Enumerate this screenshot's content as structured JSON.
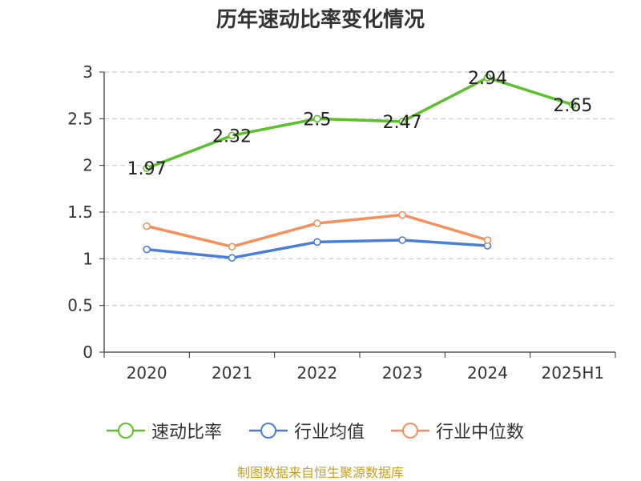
{
  "chart_data": {
    "type": "line",
    "title": "历年速动比率变化情况",
    "categories": [
      "2020",
      "2021",
      "2022",
      "2023",
      "2024",
      "2025H1"
    ],
    "ylim": [
      0,
      3
    ],
    "yticks": [
      "0",
      "0.5",
      "1",
      "1.5",
      "2",
      "2.5",
      "3"
    ],
    "grid": true,
    "legend_position": "bottom",
    "series": [
      {
        "name": "速动比率",
        "color": "#5cc02a",
        "values": [
          1.97,
          2.32,
          2.5,
          2.47,
          2.94,
          2.65
        ],
        "labels": [
          "1.97",
          "2.32",
          "2.5",
          "2.47",
          "2.94",
          "2.65"
        ]
      },
      {
        "name": "行业均值",
        "color": "#4a7fd9",
        "values": [
          1.1,
          1.01,
          1.18,
          1.2,
          1.14,
          null
        ]
      },
      {
        "name": "行业中位数",
        "color": "#f5905a",
        "values": [
          1.35,
          1.13,
          1.38,
          1.47,
          1.2,
          null
        ]
      }
    ]
  },
  "source_text": "制图数据来自恒生聚源数据库"
}
